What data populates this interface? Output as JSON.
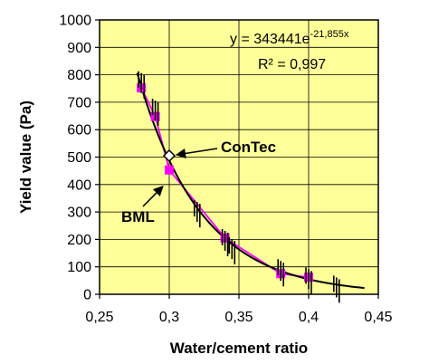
{
  "chart_data": {
    "type": "scatter",
    "xlabel": "Water/cement ratio",
    "ylabel": "Yield value (Pa)",
    "xlim": [
      0.25,
      0.45
    ],
    "ylim": [
      0,
      1000
    ],
    "x_ticks": [
      "0,25",
      "0,3",
      "0,35",
      "0,4",
      "0,45"
    ],
    "y_ticks": [
      "0",
      "100",
      "200",
      "300",
      "400",
      "500",
      "600",
      "700",
      "800",
      "900",
      "1000"
    ],
    "grid": true,
    "background_color": "#ffff99",
    "series": [
      {
        "name": "BML",
        "marker": "square",
        "color": "#ff00ff",
        "x": [
          0.28,
          0.29,
          0.3,
          0.34,
          0.38,
          0.4
        ],
        "y": [
          752,
          648,
          453,
          205,
          75,
          62
        ]
      },
      {
        "name": "ConTec",
        "marker": "vertical-bars",
        "color": "#000000",
        "x": [
          0.28,
          0.29,
          0.32,
          0.34,
          0.345,
          0.38,
          0.4,
          0.42
        ],
        "y": [
          770,
          670,
          300,
          195,
          165,
          85,
          55,
          25
        ]
      }
    ],
    "ConTec_point": {
      "x": 0.3,
      "y": 505,
      "marker": "diamond-open"
    },
    "fit": {
      "label": "y = 343441e",
      "exponent": "-21,855x",
      "r2_label": "R² = 0,997",
      "a": 343441,
      "b": -21.855,
      "x_range": [
        0.277,
        0.44
      ],
      "color": "#000000"
    },
    "bml_line_color": "#ff00ff",
    "annotations": [
      "ConTec",
      "BML"
    ]
  }
}
